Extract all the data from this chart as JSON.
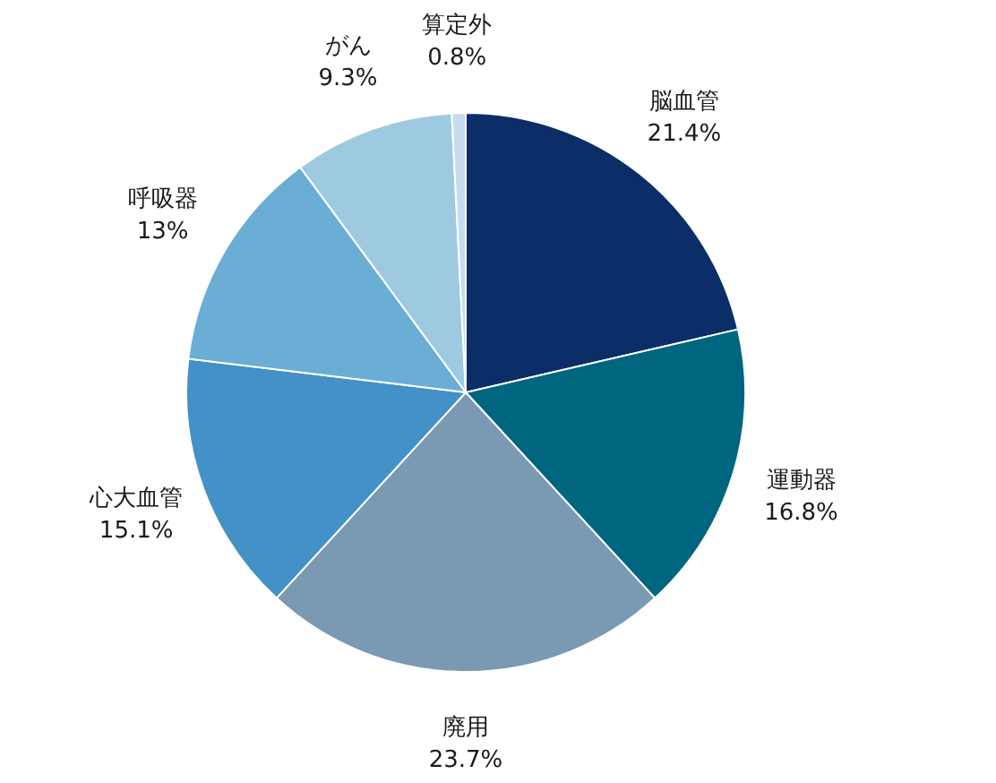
{
  "chart_data": {
    "type": "pie",
    "categories": [
      "脳血管",
      "運動器",
      "廃用",
      "心大血管",
      "呼吸器",
      "がん",
      "算定外"
    ],
    "values": [
      21.4,
      16.8,
      23.7,
      15.1,
      13,
      9.3,
      0.8
    ],
    "colors": [
      "#0b2e68",
      "#006680",
      "#7a99b3",
      "#4391c6",
      "#6aaed6",
      "#9ecae1",
      "#c6dbef"
    ],
    "value_labels": [
      "21.4%",
      "16.8%",
      "23.7%",
      "15.1%",
      "13%",
      "9.3%",
      "0.8%"
    ]
  }
}
